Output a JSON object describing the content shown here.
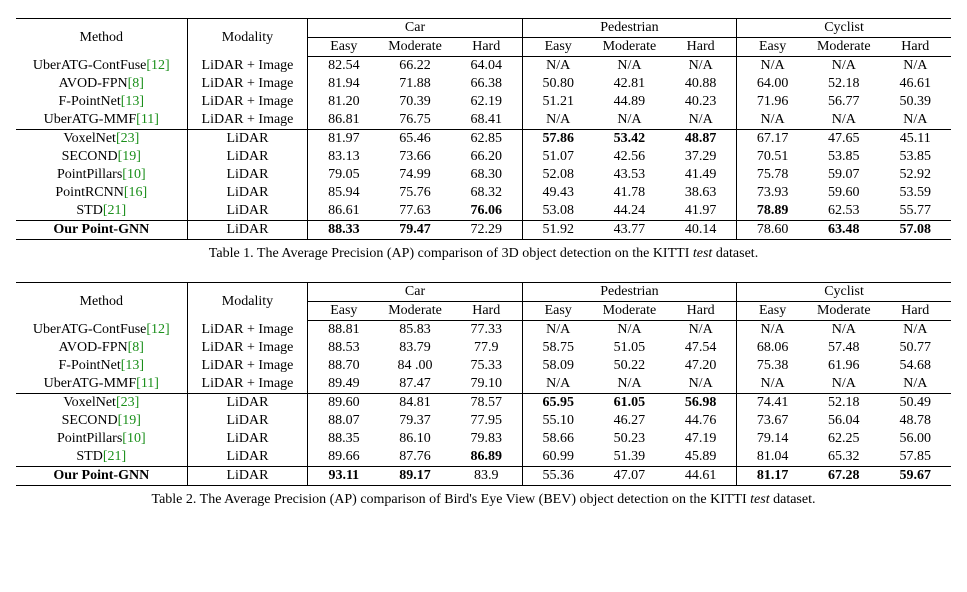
{
  "tables": [
    {
      "id": "t1",
      "caption_prefix": "Table 1. The Average Precision (AP) comparison of 3D object detection on the KITTI ",
      "caption_italic": "test",
      "caption_suffix": " dataset.",
      "header": {
        "method": "Method",
        "modality": "Modality",
        "groups": [
          "Car",
          "Pedestrian",
          "Cyclist"
        ],
        "sub": [
          "Easy",
          "Moderate",
          "Hard"
        ]
      },
      "sections": [
        [
          {
            "method": "UberATG-ContFuse",
            "cite": "[12]",
            "modality": "LiDAR + Image",
            "vals": [
              "82.54",
              "66.22",
              "64.04",
              "N/A",
              "N/A",
              "N/A",
              "N/A",
              "N/A",
              "N/A"
            ],
            "bold": [
              0,
              0,
              0,
              0,
              0,
              0,
              0,
              0,
              0
            ]
          },
          {
            "method": "AVOD-FPN",
            "cite": "[8]",
            "modality": "LiDAR + Image",
            "vals": [
              "81.94",
              "71.88",
              "66.38",
              "50.80",
              "42.81",
              "40.88",
              "64.00",
              "52.18",
              "46.61"
            ],
            "bold": [
              0,
              0,
              0,
              0,
              0,
              0,
              0,
              0,
              0
            ]
          },
          {
            "method": "F-PointNet",
            "cite": "[13]",
            "modality": "LiDAR + Image",
            "vals": [
              "81.20",
              "70.39",
              "62.19",
              "51.21",
              "44.89",
              "40.23",
              "71.96",
              "56.77",
              "50.39"
            ],
            "bold": [
              0,
              0,
              0,
              0,
              0,
              0,
              0,
              0,
              0
            ]
          },
          {
            "method": "UberATG-MMF",
            "cite": "[11]",
            "modality": "LiDAR + Image",
            "vals": [
              "86.81",
              "76.75",
              "68.41",
              "N/A",
              "N/A",
              "N/A",
              "N/A",
              "N/A",
              "N/A"
            ],
            "bold": [
              0,
              0,
              0,
              0,
              0,
              0,
              0,
              0,
              0
            ]
          }
        ],
        [
          {
            "method": "VoxelNet",
            "cite": "[23]",
            "modality": "LiDAR",
            "vals": [
              "81.97",
              "65.46",
              "62.85",
              "57.86",
              "53.42",
              "48.87",
              "67.17",
              "47.65",
              "45.11"
            ],
            "bold": [
              0,
              0,
              0,
              1,
              1,
              1,
              0,
              0,
              0
            ]
          },
          {
            "method": "SECOND",
            "cite": "[19]",
            "modality": "LiDAR",
            "vals": [
              "83.13",
              "73.66",
              "66.20",
              "51.07",
              "42.56",
              "37.29",
              "70.51",
              "53.85",
              "53.85"
            ],
            "bold": [
              0,
              0,
              0,
              0,
              0,
              0,
              0,
              0,
              0
            ]
          },
          {
            "method": "PointPillars",
            "cite": "[10]",
            "modality": "LiDAR",
            "vals": [
              "79.05",
              "74.99",
              "68.30",
              "52.08",
              "43.53",
              "41.49",
              "75.78",
              "59.07",
              "52.92"
            ],
            "bold": [
              0,
              0,
              0,
              0,
              0,
              0,
              0,
              0,
              0
            ]
          },
          {
            "method": "PointRCNN",
            "cite": "[16]",
            "modality": "LiDAR",
            "vals": [
              "85.94",
              "75.76",
              "68.32",
              "49.43",
              "41.78",
              "38.63",
              "73.93",
              "59.60",
              "53.59"
            ],
            "bold": [
              0,
              0,
              0,
              0,
              0,
              0,
              0,
              0,
              0
            ]
          },
          {
            "method": "STD",
            "cite": "[21]",
            "modality": "LiDAR",
            "vals": [
              "86.61",
              "77.63",
              "76.06",
              "53.08",
              "44.24",
              "41.97",
              "78.89",
              "62.53",
              "55.77"
            ],
            "bold": [
              0,
              0,
              1,
              0,
              0,
              0,
              1,
              0,
              0
            ]
          }
        ],
        [
          {
            "method": "Our Point-GNN",
            "cite": "",
            "modality": "LiDAR",
            "vals": [
              "88.33",
              "79.47",
              "72.29",
              "51.92",
              "43.77",
              "40.14",
              "78.60",
              "63.48",
              "57.08"
            ],
            "bold": [
              1,
              1,
              0,
              0,
              0,
              0,
              0,
              1,
              1
            ],
            "method_bold": true
          }
        ]
      ]
    },
    {
      "id": "t2",
      "caption_prefix": "Table 2. The Average Precision (AP) comparison of Bird's Eye View (BEV) object detection on the KITTI ",
      "caption_italic": "test",
      "caption_suffix": " dataset.",
      "header": {
        "method": "Method",
        "modality": "Modality",
        "groups": [
          "Car",
          "Pedestrian",
          "Cyclist"
        ],
        "sub": [
          "Easy",
          "Moderate",
          "Hard"
        ]
      },
      "sections": [
        [
          {
            "method": "UberATG-ContFuse",
            "cite": "[12]",
            "modality": "LiDAR + Image",
            "vals": [
              "88.81",
              "85.83",
              "77.33",
              "N/A",
              "N/A",
              "N/A",
              "N/A",
              "N/A",
              "N/A"
            ],
            "bold": [
              0,
              0,
              0,
              0,
              0,
              0,
              0,
              0,
              0
            ]
          },
          {
            "method": "AVOD-FPN",
            "cite": "[8]",
            "modality": "LiDAR + Image",
            "vals": [
              "88.53",
              "83.79",
              "77.9",
              "58.75",
              "51.05",
              "47.54",
              "68.06",
              "57.48",
              "50.77"
            ],
            "bold": [
              0,
              0,
              0,
              0,
              0,
              0,
              0,
              0,
              0
            ]
          },
          {
            "method": "F-PointNet",
            "cite": "[13]",
            "modality": "LiDAR + Image",
            "vals": [
              "88.70",
              "84 .00",
              "75.33",
              "58.09",
              "50.22",
              "47.20",
              "75.38",
              "61.96",
              "54.68"
            ],
            "bold": [
              0,
              0,
              0,
              0,
              0,
              0,
              0,
              0,
              0
            ]
          },
          {
            "method": "UberATG-MMF",
            "cite": "[11]",
            "modality": "LiDAR + Image",
            "vals": [
              "89.49",
              "87.47",
              "79.10",
              "N/A",
              "N/A",
              "N/A",
              "N/A",
              "N/A",
              "N/A"
            ],
            "bold": [
              0,
              0,
              0,
              0,
              0,
              0,
              0,
              0,
              0
            ]
          }
        ],
        [
          {
            "method": "VoxelNet",
            "cite": "[23]",
            "modality": "LiDAR",
            "vals": [
              "89.60",
              "84.81",
              "78.57",
              "65.95",
              "61.05",
              "56.98",
              "74.41",
              "52.18",
              "50.49"
            ],
            "bold": [
              0,
              0,
              0,
              1,
              1,
              1,
              0,
              0,
              0
            ]
          },
          {
            "method": "SECOND",
            "cite": "[19]",
            "modality": "LiDAR",
            "vals": [
              "88.07",
              "79.37",
              "77.95",
              "55.10",
              "46.27",
              "44.76",
              "73.67",
              "56.04",
              "48.78"
            ],
            "bold": [
              0,
              0,
              0,
              0,
              0,
              0,
              0,
              0,
              0
            ]
          },
          {
            "method": "PointPillars",
            "cite": "[10]",
            "modality": "LiDAR",
            "vals": [
              "88.35",
              "86.10",
              "79.83",
              "58.66",
              "50.23",
              "47.19",
              "79.14",
              "62.25",
              "56.00"
            ],
            "bold": [
              0,
              0,
              0,
              0,
              0,
              0,
              0,
              0,
              0
            ]
          },
          {
            "method": "STD",
            "cite": "[21]",
            "modality": "LiDAR",
            "vals": [
              "89.66",
              "87.76",
              "86.89",
              "60.99",
              "51.39",
              "45.89",
              "81.04",
              "65.32",
              "57.85"
            ],
            "bold": [
              0,
              0,
              1,
              0,
              0,
              0,
              0,
              0,
              0
            ]
          }
        ],
        [
          {
            "method": "Our Point-GNN",
            "cite": "",
            "modality": "LiDAR",
            "vals": [
              "93.11",
              "89.17",
              "83.9",
              "55.36",
              "47.07",
              "44.61",
              "81.17",
              "67.28",
              "59.67"
            ],
            "bold": [
              1,
              1,
              0,
              0,
              0,
              0,
              1,
              1,
              1
            ],
            "method_bold": true
          }
        ]
      ]
    }
  ]
}
